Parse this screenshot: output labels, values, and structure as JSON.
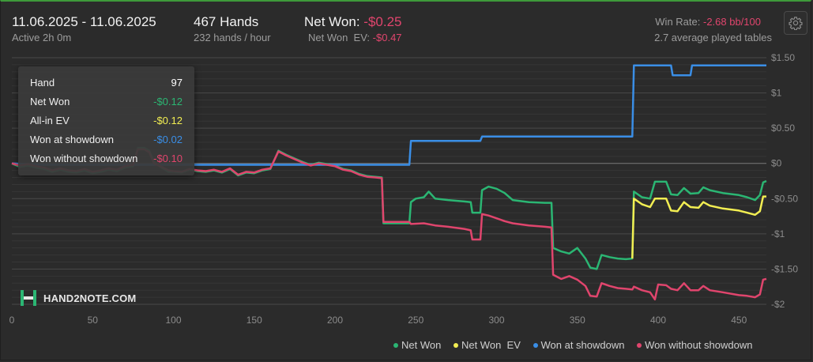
{
  "header": {
    "date_range": "11.06.2025 - 11.06.2025",
    "active_time": "Active 2h 0m",
    "hands_total": "467 Hands",
    "hands_rate": "232 hands / hour",
    "net_won_label": "Net Won:",
    "net_won_value": "-$0.25",
    "net_won_ev_label": "Net Won  EV:",
    "net_won_ev_value": "-$0.47",
    "win_rate_label": "Win Rate:",
    "win_rate_value": "-2.68 bb/100",
    "avg_tables": "2.7 average played tables",
    "settings_icon": "gear-icon"
  },
  "tooltip": {
    "rows": [
      {
        "label": "Hand",
        "value": "97"
      },
      {
        "label": "Net Won",
        "value": "-$0.12"
      },
      {
        "label": "All-in EV",
        "value": "-$0.12"
      },
      {
        "label": "Won at showdown",
        "value": "-$0.02"
      },
      {
        "label": "Won without showdown",
        "value": "-$0.10"
      }
    ]
  },
  "logo": {
    "text": "HAND2NOTE.COM"
  },
  "colors": {
    "net_won": "#2bb673",
    "net_won_ev": "#f2ee52",
    "won_at_showdown": "#3a8ee6",
    "won_without_showdown": "#e0456d",
    "tooltip_hand": "#ffffff",
    "negative_text": "#e0456d"
  },
  "chart_data": {
    "type": "line",
    "xlim": [
      0,
      467
    ],
    "ylim": [
      -2,
      1.5
    ],
    "x_ticks": [
      0,
      50,
      100,
      150,
      200,
      250,
      300,
      350,
      400,
      450
    ],
    "x_tick_labels": [
      "0",
      "50",
      "100",
      "150",
      "200",
      "250",
      "300",
      "350",
      "400",
      "450"
    ],
    "y_ticks": [
      1.5,
      1,
      0.5,
      0,
      -0.5,
      -1,
      -1.5,
      -2
    ],
    "y_tick_labels": [
      "$1.50",
      "$1",
      "$0.50",
      "$0",
      "-$0.50",
      "-$1",
      "-$1.50",
      "-$2"
    ],
    "series": [
      {
        "name": "Net Won",
        "color": "#2bb673",
        "points": [
          [
            0,
            0
          ],
          [
            5,
            -0.05
          ],
          [
            10,
            -0.03
          ],
          [
            15,
            -0.06
          ],
          [
            20,
            -0.08
          ],
          [
            25,
            -0.12
          ],
          [
            30,
            -0.09
          ],
          [
            35,
            -0.12
          ],
          [
            40,
            -0.13
          ],
          [
            45,
            -0.1
          ],
          [
            50,
            -0.14
          ],
          [
            55,
            -0.12
          ],
          [
            60,
            -0.09
          ],
          [
            65,
            -0.11
          ],
          [
            70,
            -0.06
          ],
          [
            75,
            -0.04
          ],
          [
            78,
            0.22
          ],
          [
            82,
            0.22
          ],
          [
            85,
            0.18
          ],
          [
            88,
            0.02
          ],
          [
            92,
            -0.05
          ],
          [
            97,
            -0.12
          ],
          [
            100,
            -0.12
          ],
          [
            105,
            -0.13
          ],
          [
            110,
            -0.09
          ],
          [
            115,
            -0.11
          ],
          [
            120,
            -0.12
          ],
          [
            125,
            -0.1
          ],
          [
            130,
            -0.13
          ],
          [
            135,
            -0.08
          ],
          [
            140,
            -0.17
          ],
          [
            145,
            -0.13
          ],
          [
            150,
            -0.14
          ],
          [
            155,
            -0.1
          ],
          [
            160,
            -0.08
          ],
          [
            165,
            0.18
          ],
          [
            170,
            0.12
          ],
          [
            175,
            0.07
          ],
          [
            180,
            0.02
          ],
          [
            185,
            -0.02
          ],
          [
            190,
            0.01
          ],
          [
            195,
            -0.01
          ],
          [
            200,
            -0.03
          ],
          [
            205,
            -0.08
          ],
          [
            210,
            -0.1
          ],
          [
            215,
            -0.15
          ],
          [
            220,
            -0.18
          ],
          [
            225,
            -0.19
          ],
          [
            229,
            -0.2
          ],
          [
            230,
            -0.85
          ],
          [
            240,
            -0.85
          ],
          [
            246,
            -0.85
          ],
          [
            247,
            -0.55
          ],
          [
            250,
            -0.5
          ],
          [
            255,
            -0.48
          ],
          [
            258,
            -0.4
          ],
          [
            262,
            -0.5
          ],
          [
            270,
            -0.52
          ],
          [
            280,
            -0.54
          ],
          [
            284,
            -0.55
          ],
          [
            285,
            -0.7
          ],
          [
            290,
            -0.7
          ],
          [
            291,
            -0.38
          ],
          [
            295,
            -0.33
          ],
          [
            300,
            -0.36
          ],
          [
            305,
            -0.42
          ],
          [
            310,
            -0.52
          ],
          [
            320,
            -0.55
          ],
          [
            330,
            -0.56
          ],
          [
            334,
            -0.56
          ],
          [
            335,
            -1.2
          ],
          [
            340,
            -1.25
          ],
          [
            345,
            -1.28
          ],
          [
            350,
            -1.2
          ],
          [
            355,
            -1.35
          ],
          [
            358,
            -1.48
          ],
          [
            362,
            -1.5
          ],
          [
            365,
            -1.3
          ],
          [
            370,
            -1.33
          ],
          [
            375,
            -1.35
          ],
          [
            380,
            -1.36
          ],
          [
            384,
            -1.35
          ],
          [
            385,
            -0.4
          ],
          [
            390,
            -0.48
          ],
          [
            395,
            -0.5
          ],
          [
            398,
            -0.26
          ],
          [
            405,
            -0.26
          ],
          [
            408,
            -0.44
          ],
          [
            412,
            -0.45
          ],
          [
            416,
            -0.35
          ],
          [
            420,
            -0.43
          ],
          [
            425,
            -0.42
          ],
          [
            428,
            -0.34
          ],
          [
            432,
            -0.38
          ],
          [
            440,
            -0.42
          ],
          [
            450,
            -0.45
          ],
          [
            455,
            -0.48
          ],
          [
            460,
            -0.52
          ],
          [
            463,
            -0.45
          ],
          [
            465,
            -0.27
          ],
          [
            467,
            -0.25
          ]
        ]
      },
      {
        "name": "Net Won  EV",
        "color": "#f2ee52",
        "points": [
          [
            384,
            -1.35
          ],
          [
            385,
            -0.5
          ],
          [
            390,
            -0.58
          ],
          [
            395,
            -0.62
          ],
          [
            398,
            -0.5
          ],
          [
            405,
            -0.5
          ],
          [
            408,
            -0.67
          ],
          [
            412,
            -0.68
          ],
          [
            416,
            -0.55
          ],
          [
            420,
            -0.62
          ],
          [
            425,
            -0.63
          ],
          [
            428,
            -0.55
          ],
          [
            432,
            -0.6
          ],
          [
            440,
            -0.64
          ],
          [
            450,
            -0.67
          ],
          [
            455,
            -0.7
          ],
          [
            460,
            -0.73
          ],
          [
            463,
            -0.68
          ],
          [
            465,
            -0.47
          ],
          [
            467,
            -0.47
          ]
        ]
      },
      {
        "name": "Won at showdown",
        "color": "#3a8ee6",
        "points": [
          [
            0,
            0
          ],
          [
            20,
            -0.02
          ],
          [
            97,
            -0.02
          ],
          [
            150,
            -0.02
          ],
          [
            246,
            -0.02
          ],
          [
            247,
            0.32
          ],
          [
            290,
            0.32
          ],
          [
            291,
            0.38
          ],
          [
            384,
            0.38
          ],
          [
            385,
            1.39
          ],
          [
            408,
            1.39
          ],
          [
            409,
            1.25
          ],
          [
            420,
            1.25
          ],
          [
            421,
            1.39
          ],
          [
            467,
            1.39
          ]
        ]
      },
      {
        "name": "Won without showdown",
        "color": "#e0456d",
        "points": [
          [
            0,
            0
          ],
          [
            5,
            -0.03
          ],
          [
            10,
            -0.01
          ],
          [
            15,
            -0.04
          ],
          [
            20,
            -0.06
          ],
          [
            25,
            -0.1
          ],
          [
            30,
            -0.07
          ],
          [
            35,
            -0.1
          ],
          [
            40,
            -0.11
          ],
          [
            45,
            -0.08
          ],
          [
            50,
            -0.12
          ],
          [
            55,
            -0.1
          ],
          [
            60,
            -0.07
          ],
          [
            65,
            -0.09
          ],
          [
            70,
            -0.04
          ],
          [
            75,
            -0.02
          ],
          [
            78,
            0.2
          ],
          [
            82,
            0.2
          ],
          [
            85,
            0.16
          ],
          [
            88,
            0.0
          ],
          [
            92,
            -0.04
          ],
          [
            97,
            -0.1
          ],
          [
            100,
            -0.11
          ],
          [
            105,
            -0.12
          ],
          [
            110,
            -0.08
          ],
          [
            115,
            -0.1
          ],
          [
            120,
            -0.11
          ],
          [
            125,
            -0.09
          ],
          [
            130,
            -0.12
          ],
          [
            135,
            -0.07
          ],
          [
            140,
            -0.16
          ],
          [
            145,
            -0.12
          ],
          [
            150,
            -0.13
          ],
          [
            155,
            -0.09
          ],
          [
            160,
            -0.07
          ],
          [
            165,
            0.17
          ],
          [
            170,
            0.11
          ],
          [
            175,
            0.06
          ],
          [
            180,
            0.01
          ],
          [
            185,
            -0.03
          ],
          [
            190,
            0.0
          ],
          [
            195,
            -0.02
          ],
          [
            200,
            -0.04
          ],
          [
            205,
            -0.09
          ],
          [
            210,
            -0.11
          ],
          [
            215,
            -0.16
          ],
          [
            220,
            -0.19
          ],
          [
            225,
            -0.2
          ],
          [
            229,
            -0.21
          ],
          [
            230,
            -0.83
          ],
          [
            246,
            -0.83
          ],
          [
            247,
            -0.86
          ],
          [
            255,
            -0.85
          ],
          [
            262,
            -0.88
          ],
          [
            270,
            -0.9
          ],
          [
            280,
            -0.93
          ],
          [
            284,
            -0.95
          ],
          [
            285,
            -1.08
          ],
          [
            290,
            -1.08
          ],
          [
            291,
            -0.72
          ],
          [
            295,
            -0.74
          ],
          [
            300,
            -0.78
          ],
          [
            305,
            -0.82
          ],
          [
            310,
            -0.85
          ],
          [
            320,
            -0.88
          ],
          [
            330,
            -0.9
          ],
          [
            334,
            -0.91
          ],
          [
            335,
            -1.58
          ],
          [
            340,
            -1.64
          ],
          [
            345,
            -1.6
          ],
          [
            350,
            -1.65
          ],
          [
            355,
            -1.74
          ],
          [
            358,
            -1.88
          ],
          [
            362,
            -1.89
          ],
          [
            365,
            -1.7
          ],
          [
            370,
            -1.74
          ],
          [
            375,
            -1.77
          ],
          [
            380,
            -1.78
          ],
          [
            384,
            -1.79
          ],
          [
            385,
            -1.75
          ],
          [
            390,
            -1.8
          ],
          [
            395,
            -1.83
          ],
          [
            398,
            -1.93
          ],
          [
            400,
            -1.72
          ],
          [
            405,
            -1.73
          ],
          [
            408,
            -1.78
          ],
          [
            412,
            -1.8
          ],
          [
            416,
            -1.7
          ],
          [
            420,
            -1.8
          ],
          [
            425,
            -1.8
          ],
          [
            428,
            -1.74
          ],
          [
            432,
            -1.8
          ],
          [
            440,
            -1.83
          ],
          [
            450,
            -1.87
          ],
          [
            455,
            -1.88
          ],
          [
            460,
            -1.9
          ],
          [
            463,
            -1.86
          ],
          [
            465,
            -1.65
          ],
          [
            467,
            -1.64
          ]
        ]
      }
    ],
    "legend": [
      "Net Won",
      "Net Won  EV",
      "Won at showdown",
      "Won without showdown"
    ],
    "legend_position": "bottom-right",
    "grid": true
  }
}
